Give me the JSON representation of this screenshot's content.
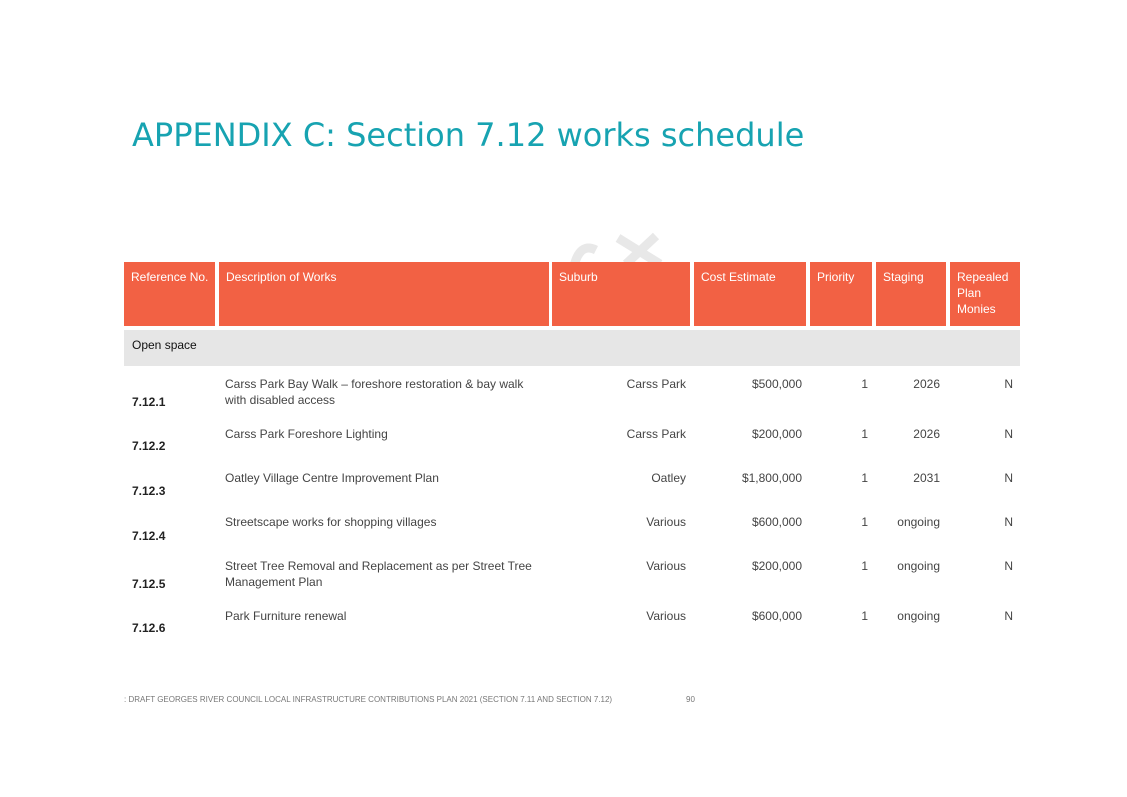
{
  "title": "APPENDIX C: Section 7.12 works schedule",
  "colors": {
    "title": "#17a3b1",
    "header_bg": "#f26144",
    "section_bg": "#e6e6e6"
  },
  "table": {
    "headers": [
      "Reference No.",
      "Description of Works",
      "Suburb",
      "Cost Estimate",
      "Priority",
      "Staging",
      "Repealed Plan Monies"
    ],
    "section": "Open space",
    "rows": [
      {
        "ref": "7.12.1",
        "desc": "Carss Park Bay Walk – foreshore restoration & bay walk with disabled access",
        "suburb": "Carss Park",
        "cost": "$500,000",
        "priority": "1",
        "staging": "2026",
        "repealed": "N"
      },
      {
        "ref": "7.12.2",
        "desc": "Carss Park Foreshore Lighting",
        "suburb": "Carss Park",
        "cost": "$200,000",
        "priority": "1",
        "staging": "2026",
        "repealed": "N"
      },
      {
        "ref": "7.12.3",
        "desc": "Oatley Village Centre Improvement Plan",
        "suburb": "Oatley",
        "cost": "$1,800,000",
        "priority": "1",
        "staging": "2031",
        "repealed": "N"
      },
      {
        "ref": "7.12.4",
        "desc": "Streetscape works for shopping villages",
        "suburb": "Various",
        "cost": "$600,000",
        "priority": "1",
        "staging": "ongoing",
        "repealed": "N"
      },
      {
        "ref": "7.12.5",
        "desc": "Street Tree Removal and Replacement as per Street Tree Management Plan",
        "suburb": "Various",
        "cost": "$200,000",
        "priority": "1",
        "staging": "ongoing",
        "repealed": "N"
      },
      {
        "ref": "7.12.6",
        "desc": "Park Furniture renewal",
        "suburb": "Various",
        "cost": "$600,000",
        "priority": "1",
        "staging": "ongoing",
        "repealed": "N"
      }
    ]
  },
  "footer": {
    "text": ": DRAFT GEORGES RIVER COUNCIL LOCAL INFRASTRUCTURE CONTRIBUTIONS PLAN 2021 (SECTION 7.11 AND SECTION 7.12)",
    "page": "90"
  }
}
